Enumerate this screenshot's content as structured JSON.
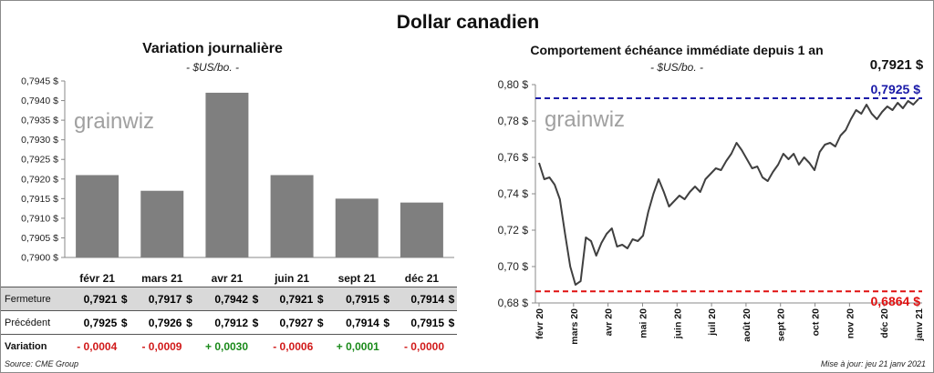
{
  "main_title": "Dollar canadien",
  "left_title": "Variation  journalière",
  "left_subtitle": "- $US/bo. -",
  "right_title": "Comportement échéance immédiate depuis 1 an",
  "right_subtitle": "- $US/bo. -",
  "last_value": "0,7921 $",
  "source": "Source: CME Group",
  "updated": "Mise à jour: jeu 21 janv 2021",
  "logo_text": "grainwiz",
  "table": {
    "rows": [
      {
        "label": "Fermeture",
        "cells": [
          "0,7921",
          "0,7917",
          "0,7942",
          "0,7921",
          "0,7915",
          "0,7914"
        ],
        "currency": "$"
      },
      {
        "label": "Précédent",
        "cells": [
          "0,7925",
          "0,7926",
          "0,7912",
          "0,7927",
          "0,7914",
          "0,7915"
        ],
        "currency": "$"
      },
      {
        "label": "Variation",
        "cells": [
          "- 0,0004",
          "- 0,0009",
          "+ 0,0030",
          "- 0,0006",
          "+ 0,0001",
          "- 0,0000"
        ],
        "signs": [
          "neg",
          "neg",
          "pos",
          "neg",
          "pos",
          "neg"
        ]
      }
    ]
  },
  "chart_data": [
    {
      "type": "bar",
      "title": "Variation  journalière",
      "subtitle": "- $US/bo. -",
      "categories": [
        "févr 21",
        "mars 21",
        "avr 21",
        "juin 21",
        "sept 21",
        "déc 21"
      ],
      "values": [
        0.7921,
        0.7917,
        0.7942,
        0.7921,
        0.7915,
        0.7914
      ],
      "ylim": [
        0.79,
        0.7945
      ],
      "yticks": [
        "0,7900 $",
        "0,7905 $",
        "0,7910 $",
        "0,7915 $",
        "0,7920 $",
        "0,7925 $",
        "0,7930 $",
        "0,7935 $",
        "0,7940 $",
        "0,7945 $"
      ],
      "bar_color": "#7f7f7f",
      "grid": false
    },
    {
      "type": "line",
      "title": "Comportement échéance immédiate depuis 1 an",
      "subtitle": "- $US/bo. -",
      "x_labels": [
        "févr 20",
        "mars 20",
        "avr 20",
        "mai 20",
        "juin 20",
        "juil 20",
        "août 20",
        "sept 20",
        "oct 20",
        "nov 20",
        "déc 20",
        "janv 21"
      ],
      "ylim": [
        0.68,
        0.8
      ],
      "yticks": [
        "0,68 $",
        "0,70 $",
        "0,72 $",
        "0,74 $",
        "0,76 $",
        "0,78 $",
        "0,80 $"
      ],
      "y": [
        0.757,
        0.748,
        0.749,
        0.745,
        0.737,
        0.718,
        0.7,
        0.69,
        0.692,
        0.716,
        0.714,
        0.706,
        0.713,
        0.718,
        0.721,
        0.711,
        0.712,
        0.71,
        0.715,
        0.714,
        0.717,
        0.73,
        0.74,
        0.748,
        0.741,
        0.733,
        0.736,
        0.739,
        0.737,
        0.741,
        0.744,
        0.741,
        0.748,
        0.751,
        0.754,
        0.753,
        0.758,
        0.762,
        0.768,
        0.764,
        0.759,
        0.754,
        0.755,
        0.749,
        0.747,
        0.752,
        0.756,
        0.762,
        0.759,
        0.762,
        0.756,
        0.76,
        0.757,
        0.753,
        0.763,
        0.767,
        0.768,
        0.766,
        0.772,
        0.775,
        0.781,
        0.786,
        0.784,
        0.789,
        0.784,
        0.781,
        0.785,
        0.788,
        0.786,
        0.79,
        0.787,
        0.791,
        0.789,
        0.7921
      ],
      "reference_lines": [
        {
          "label": "0,7925 $",
          "value": 0.7925,
          "color": "#1a1aa8"
        },
        {
          "label": "0,6864 $",
          "value": 0.6864,
          "color": "#e01010"
        }
      ],
      "line_color": "#404040",
      "grid": false
    }
  ]
}
